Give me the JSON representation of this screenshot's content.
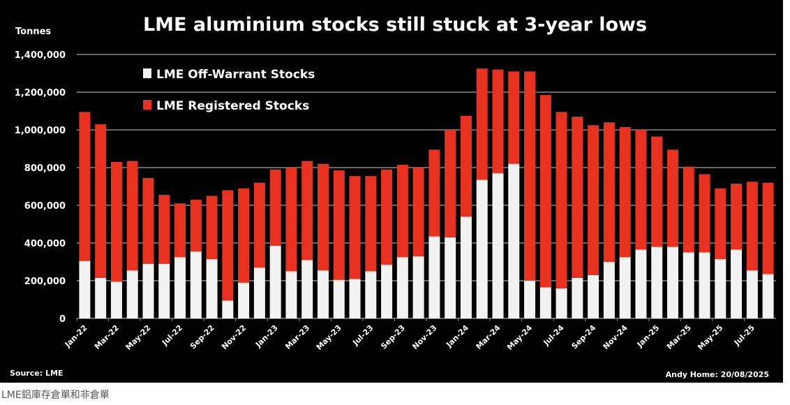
{
  "chart_data": {
    "type": "bar",
    "stacked": true,
    "title": "LME aluminium stocks still stuck at 3-year lows",
    "ylabel": "Tonnes",
    "ylim": [
      0,
      1400000
    ],
    "yticks": [
      "0",
      "200,000",
      "400,000",
      "600,000",
      "800,000",
      "1,000,000",
      "1,200,000",
      "1,400,000"
    ],
    "grid": true,
    "legend_position": "top-left",
    "categories": [
      "Jan-22",
      "Feb-22",
      "Mar-22",
      "Apr-22",
      "May-22",
      "Jun-22",
      "Jul-22",
      "Aug-22",
      "Sep-22",
      "Oct-22",
      "Nov-22",
      "Dec-22",
      "Jan-23",
      "Feb-23",
      "Mar-23",
      "Apr-23",
      "May-23",
      "Jun-23",
      "Jul-23",
      "Aug-23",
      "Sep-23",
      "Oct-23",
      "Nov-23",
      "Dec-23",
      "Jan-24",
      "Feb-24",
      "Mar-24",
      "Apr-24",
      "May-24",
      "Jun-24",
      "Jul-24",
      "Aug-24",
      "Sep-24",
      "Oct-24",
      "Nov-24",
      "Dec-24",
      "Jan-25",
      "Feb-25",
      "Mar-25",
      "Apr-25",
      "May-25",
      "Jun-25",
      "Jul-25",
      "Aug-25"
    ],
    "xtick_labels": [
      "Jan-22",
      "Mar-22",
      "May-22",
      "Jul-22",
      "Sep-22",
      "Nov-22",
      "Jan-23",
      "Mar-23",
      "May-23",
      "Jul-23",
      "Sep-23",
      "Nov-23",
      "Jan-24",
      "Mar-24",
      "May-24",
      "Jul-24",
      "Sep-24",
      "Nov-24",
      "Jan-25",
      "Mar-25",
      "May-25",
      "Jul-25"
    ],
    "series": [
      {
        "name": "LME Off-Warrant Stocks",
        "color": "#f2f2f2",
        "values": [
          305000,
          215000,
          195000,
          255000,
          290000,
          290000,
          325000,
          355000,
          315000,
          95000,
          190000,
          270000,
          385000,
          250000,
          310000,
          255000,
          205000,
          210000,
          250000,
          285000,
          325000,
          330000,
          435000,
          430000,
          540000,
          735000,
          770000,
          820000,
          200000,
          165000,
          160000,
          215000,
          230000,
          300000,
          325000,
          365000,
          380000,
          380000,
          350000,
          350000,
          315000,
          365000,
          255000,
          235000
        ]
      },
      {
        "name": "LME Registered Stocks",
        "color": "#e8321f",
        "values": [
          790000,
          815000,
          635000,
          580000,
          455000,
          365000,
          285000,
          275000,
          335000,
          585000,
          500000,
          450000,
          405000,
          550000,
          525000,
          565000,
          580000,
          545000,
          505000,
          505000,
          490000,
          470000,
          460000,
          570000,
          535000,
          590000,
          550000,
          490000,
          1110000,
          1020000,
          935000,
          855000,
          795000,
          740000,
          690000,
          635000,
          585000,
          515000,
          455000,
          415000,
          375000,
          350000,
          470000,
          485000
        ]
      }
    ]
  },
  "source": "Source: LME",
  "credit": "Andy Home: 20/08/2025",
  "caption": "LME鋁庫存倉單和非倉單"
}
